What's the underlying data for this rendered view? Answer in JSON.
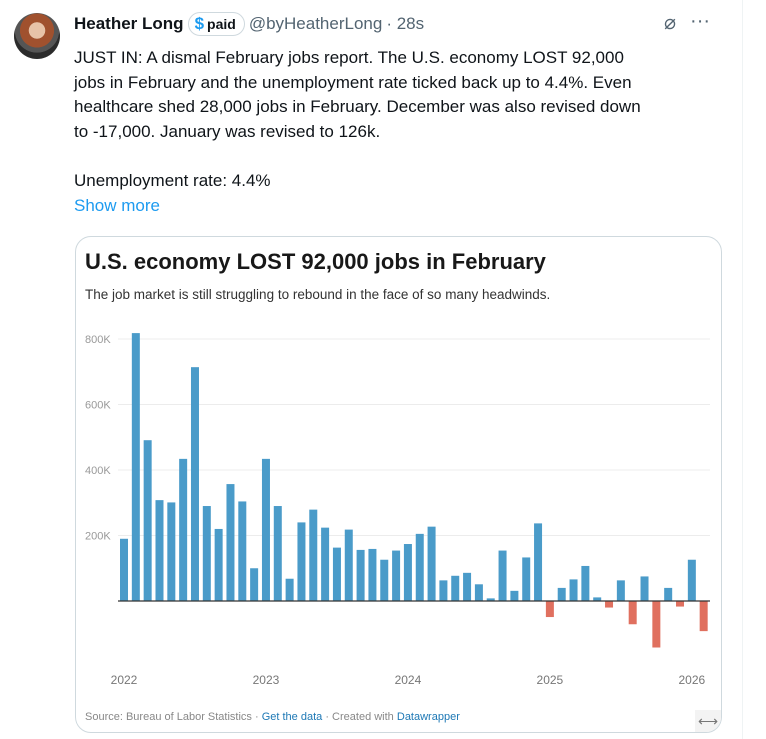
{
  "tweet": {
    "author_name": "Heather Long",
    "badge": {
      "icon": "dollar-icon",
      "label": "paid",
      "symbol": "$"
    },
    "handle": "@byHeatherLong",
    "time": "· 28s",
    "body_lines": [
      "JUST IN: A dismal February jobs report. The U.S. economy LOST 92,000",
      "jobs in February and the unemployment rate ticked back up to 4.4%. Even",
      "healthcare shed 28,000 jobs in February. December was also revised down",
      "to -17,000. January was revised to 126k."
    ],
    "unemployment_line": "Unemployment rate: 4.4%",
    "show_more": "Show more"
  },
  "card": {
    "source": "Source: Bureau of Labor Statistics ·",
    "get_data": "Get the data",
    "created": "· Created with",
    "datawrapper": "Datawrapper",
    "expand_symbol": "⟷"
  },
  "colors": {
    "positive": "#4a9bc9",
    "negative": "#e0705f",
    "accent": "#1d9bf0"
  },
  "chart_data": {
    "type": "bar",
    "title": "U.S. economy LOST 92,000 jobs in February",
    "subtitle": "The job market is still struggling to rebound in the face of so many headwinds.",
    "xlabel": "",
    "ylabel": "",
    "ylim": [
      -150,
      800
    ],
    "yticks": [
      {
        "v": 800,
        "label": "800K"
      },
      {
        "v": 600,
        "label": "600K"
      },
      {
        "v": 400,
        "label": "400K"
      },
      {
        "v": 200,
        "label": "200K"
      }
    ],
    "xticks": [
      {
        "i": 0,
        "label": "2022"
      },
      {
        "i": 12,
        "label": "2023"
      },
      {
        "i": 24,
        "label": "2024"
      },
      {
        "i": 36,
        "label": "2025"
      },
      {
        "i": 48,
        "label": "2026"
      }
    ],
    "unit": "thousands of jobs, monthly change",
    "values": [
      190,
      818,
      491,
      308,
      301,
      434,
      714,
      290,
      220,
      357,
      304,
      100,
      434,
      290,
      68,
      240,
      279,
      224,
      163,
      218,
      156,
      159,
      126,
      154,
      174,
      205,
      227,
      63,
      77,
      86,
      51,
      8,
      154,
      31,
      133,
      237,
      -49,
      40,
      66,
      107,
      11,
      -20,
      63,
      -71,
      75,
      -142,
      40,
      -17,
      126,
      -92
    ]
  }
}
